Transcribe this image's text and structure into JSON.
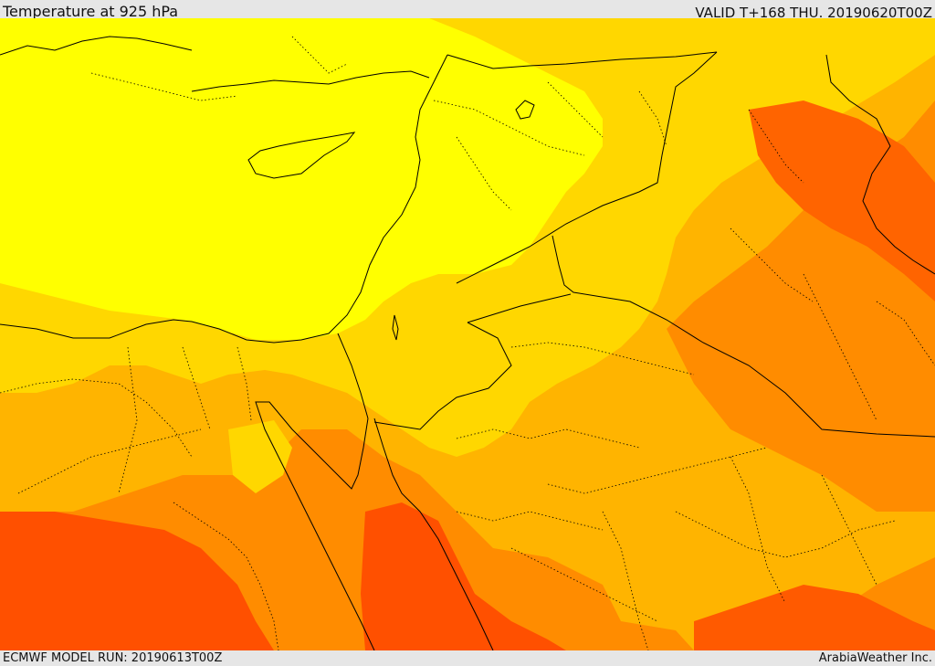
{
  "header": {
    "title": "Temperature at 925 hPa",
    "valid_time": "VALID T+168 THU. 20190620T00Z"
  },
  "footer": {
    "model_run": "ECMWF MODEL RUN: 20190613T00Z",
    "credit": "ArabiaWeather Inc."
  },
  "map": {
    "colors": {
      "lightest_yellow": "#ffff00",
      "yellow": "#ffd700",
      "light_orange": "#ffb400",
      "orange": "#ff8c00",
      "dark_orange": "#ff5000",
      "red_orange": "#e53000",
      "border_line": "#000000"
    }
  }
}
